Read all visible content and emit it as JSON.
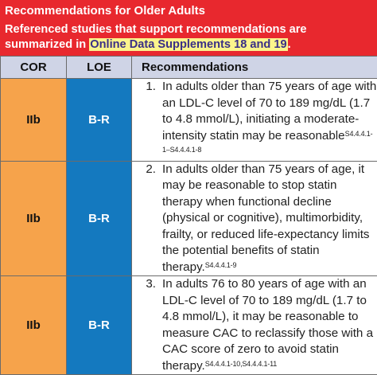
{
  "banner": {
    "title": "Recommendations for Older Adults",
    "subtitle_prefix": "Referenced studies that support recommendations are summarized in",
    "subtitle_highlight": "Online Data Supplements 18 and 19",
    "subtitle_suffix": "."
  },
  "table": {
    "headers": {
      "cor": "COR",
      "loe": "LOE",
      "recommendations": "Recommendations"
    },
    "rows": [
      {
        "cor": "IIb",
        "loe": "B-R",
        "number": "1.",
        "text": "In adults older than 75 years of age with an LDL-C level of 70 to 189 mg/dL (1.7 to 4.8 mmol/L), initiating a moderate-intensity statin may be reasonable",
        "refs": "S4.4.4.1-1–S4.4.4.1-8"
      },
      {
        "cor": "IIb",
        "loe": "B-R",
        "number": "2.",
        "text": "In adults older than 75 years of age, it may be reasonable to stop statin therapy when functional decline (physical or cognitive), multimorbidity, frailty, or reduced life-expectancy limits the potential benefits of statin therapy.",
        "refs": "S4.4.4.1-9"
      },
      {
        "cor": "IIb",
        "loe": "B-R",
        "number": "3.",
        "text": "In adults 76 to 80 years of age with an LDL-C level of 70 to 189 mg/dL (1.7 to 4.8 mmol/L), it may be reasonable to measure CAC to reclassify those with a CAC score of zero to avoid statin therapy.",
        "refs": "S4.4.4.1-10,S4.4.4.1-11"
      }
    ]
  }
}
